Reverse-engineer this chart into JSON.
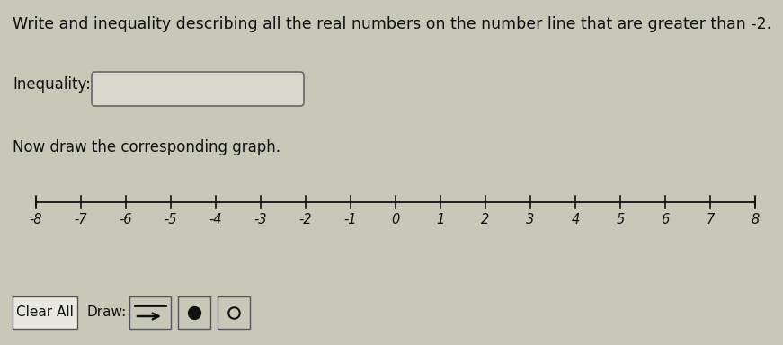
{
  "bg_color": "#c8c8b8",
  "title_text": "Write and inequality describing all the real numbers on the number line that are greater than -2.",
  "inequality_label": "Inequality:",
  "graph_label": "Now draw the corresponding graph.",
  "number_line_min": -8,
  "number_line_max": 8,
  "text_color": "#111111",
  "box_color": "#d8d8cc",
  "box_edge_color": "#666666",
  "number_line_color": "#111111",
  "button_bg": "#c8c8b8",
  "button_edge": "#555555",
  "clear_all_bg": "#e8e8e0",
  "clear_all_edge": "#555555",
  "filled_circle_label": "●",
  "open_circle_label": "○",
  "clear_all_label": "Clear All",
  "draw_label": "Draw:",
  "title_fontsize": 12.5,
  "label_fontsize": 12,
  "tick_fontsize": 10.5,
  "btn_fontsize": 11
}
